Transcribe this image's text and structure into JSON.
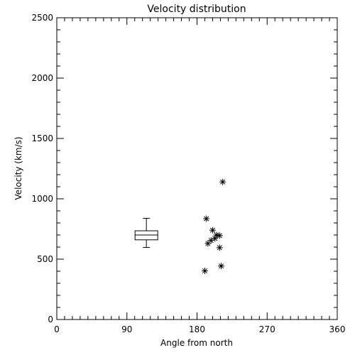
{
  "chart_data": {
    "type": "scatter",
    "title": "Velocity distribution",
    "xlabel": "Angle from north",
    "ylabel": "Velocity (km/s)",
    "xlim": [
      0,
      360
    ],
    "ylim": [
      0,
      2500
    ],
    "xticks": [
      0,
      90,
      180,
      270,
      360
    ],
    "yticks": [
      0,
      500,
      1000,
      1500,
      2000,
      2500
    ],
    "grid": false,
    "points": [
      {
        "x": 213,
        "y": 1140
      },
      {
        "x": 192,
        "y": 835
      },
      {
        "x": 200,
        "y": 740
      },
      {
        "x": 205,
        "y": 700
      },
      {
        "x": 209,
        "y": 695
      },
      {
        "x": 203,
        "y": 672
      },
      {
        "x": 198,
        "y": 655
      },
      {
        "x": 194,
        "y": 630
      },
      {
        "x": 209,
        "y": 595
      },
      {
        "x": 211,
        "y": 443
      },
      {
        "x": 190,
        "y": 403
      }
    ],
    "boxplot": {
      "x": 115,
      "whisker_low": 597,
      "q1": 660,
      "median": 700,
      "q3": 735,
      "whisker_high": 838
    }
  }
}
